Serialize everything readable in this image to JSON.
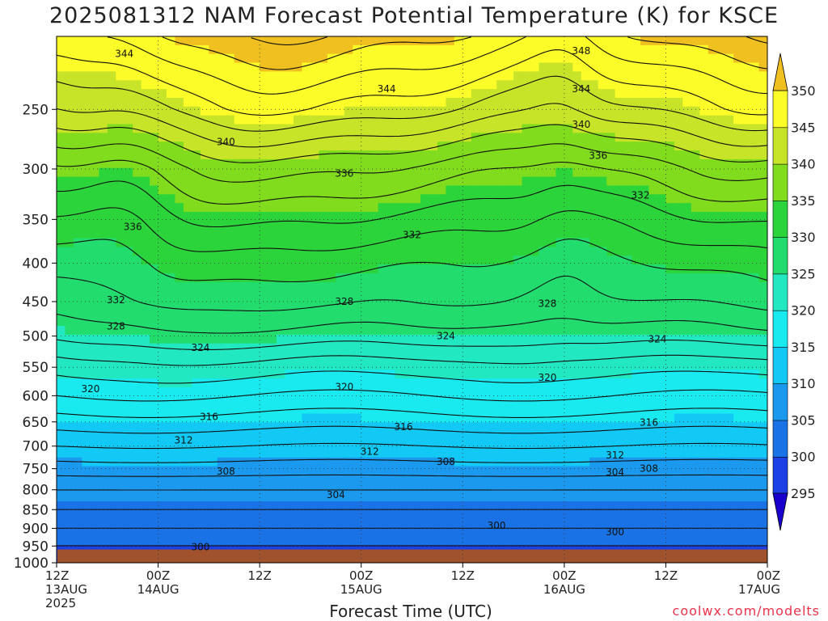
{
  "title": "2025081312 NAM Forecast Potential Temperature (K) for KSCE",
  "xlabel": "Forecast Time (UTC)",
  "watermark": "coolwx.com/modelts",
  "chart_data": {
    "type": "contour",
    "title": "2025081312 NAM Forecast Potential Temperature (K) for KSCE",
    "xlabel": "Forecast Time (UTC)",
    "ylabel": "",
    "x_ticks": [
      {
        "hour": 0,
        "label": [
          "12Z",
          "13AUG",
          "2025"
        ]
      },
      {
        "hour": 12,
        "label": [
          "00Z",
          "14AUG"
        ]
      },
      {
        "hour": 24,
        "label": [
          "12Z"
        ]
      },
      {
        "hour": 36,
        "label": [
          "00Z",
          "15AUG"
        ]
      },
      {
        "hour": 48,
        "label": [
          "12Z"
        ]
      },
      {
        "hour": 60,
        "label": [
          "00Z",
          "16AUG"
        ]
      },
      {
        "hour": 72,
        "label": [
          "12Z"
        ]
      },
      {
        "hour": 84,
        "label": [
          "00Z",
          "17AUG"
        ]
      }
    ],
    "xlim_hours": [
      0,
      84
    ],
    "y_scale": "log-pressure",
    "y_ticks_hPa": [
      250,
      300,
      350,
      400,
      450,
      500,
      550,
      600,
      650,
      700,
      750,
      800,
      850,
      900,
      950,
      1000
    ],
    "ylim_hPa": [
      200,
      1000
    ],
    "surface_hPa": 960,
    "grid": true,
    "colorbar": {
      "position": "right",
      "levels": [
        295,
        300,
        305,
        310,
        315,
        320,
        325,
        330,
        335,
        340,
        345,
        350
      ],
      "colors": [
        "#1a00cc",
        "#1a40e6",
        "#1a73e6",
        "#1a99ee",
        "#12c8f4",
        "#18eaf0",
        "#22e8c2",
        "#22dc6e",
        "#2cd43c",
        "#80dc1c",
        "#c8e428",
        "#fcfc28",
        "#f0c020"
      ]
    },
    "profile_hPa": [
      200,
      250,
      300,
      350,
      400,
      450,
      500,
      550,
      600,
      650,
      700,
      750,
      800,
      850,
      900,
      950
    ],
    "profile_theta_K": [
      350,
      344,
      337,
      333,
      330,
      328,
      325,
      321,
      318,
      315,
      312,
      309,
      306,
      304,
      302,
      300
    ],
    "contour_labels": [
      {
        "hour": 8,
        "hPa": 211,
        "value": "344"
      },
      {
        "hour": 20,
        "hPa": 276,
        "value": "340"
      },
      {
        "hour": 9,
        "hPa": 358,
        "value": "336"
      },
      {
        "hour": 7,
        "hPa": 448,
        "value": "332"
      },
      {
        "hour": 7,
        "hPa": 485,
        "value": "328"
      },
      {
        "hour": 17,
        "hPa": 518,
        "value": "324"
      },
      {
        "hour": 4,
        "hPa": 588,
        "value": "320"
      },
      {
        "hour": 18,
        "hPa": 640,
        "value": "316"
      },
      {
        "hour": 15,
        "hPa": 688,
        "value": "312"
      },
      {
        "hour": 20,
        "hPa": 756,
        "value": "308"
      },
      {
        "hour": 33,
        "hPa": 812,
        "value": "304"
      },
      {
        "hour": 17,
        "hPa": 953,
        "value": "300"
      },
      {
        "hour": 62,
        "hPa": 209,
        "value": "348"
      },
      {
        "hour": 39,
        "hPa": 235,
        "value": "344"
      },
      {
        "hour": 62,
        "hPa": 235,
        "value": "344"
      },
      {
        "hour": 62,
        "hPa": 262,
        "value": "340"
      },
      {
        "hour": 64,
        "hPa": 288,
        "value": "336"
      },
      {
        "hour": 34,
        "hPa": 304,
        "value": "336"
      },
      {
        "hour": 69,
        "hPa": 325,
        "value": "332"
      },
      {
        "hour": 42,
        "hPa": 367,
        "value": "332"
      },
      {
        "hour": 34,
        "hPa": 450,
        "value": "328"
      },
      {
        "hour": 58,
        "hPa": 453,
        "value": "328"
      },
      {
        "hour": 46,
        "hPa": 500,
        "value": "324"
      },
      {
        "hour": 71,
        "hPa": 505,
        "value": "324"
      },
      {
        "hour": 34,
        "hPa": 584,
        "value": "320"
      },
      {
        "hour": 58,
        "hPa": 568,
        "value": "320"
      },
      {
        "hour": 41,
        "hPa": 660,
        "value": "316"
      },
      {
        "hour": 70,
        "hPa": 651,
        "value": "316"
      },
      {
        "hour": 37,
        "hPa": 712,
        "value": "312"
      },
      {
        "hour": 46,
        "hPa": 734,
        "value": "308"
      },
      {
        "hour": 66,
        "hPa": 720,
        "value": "312"
      },
      {
        "hour": 70,
        "hPa": 750,
        "value": "308"
      },
      {
        "hour": 66,
        "hPa": 758,
        "value": "304"
      },
      {
        "hour": 52,
        "hPa": 893,
        "value": "300"
      },
      {
        "hour": 66,
        "hPa": 910,
        "value": "300"
      }
    ]
  }
}
